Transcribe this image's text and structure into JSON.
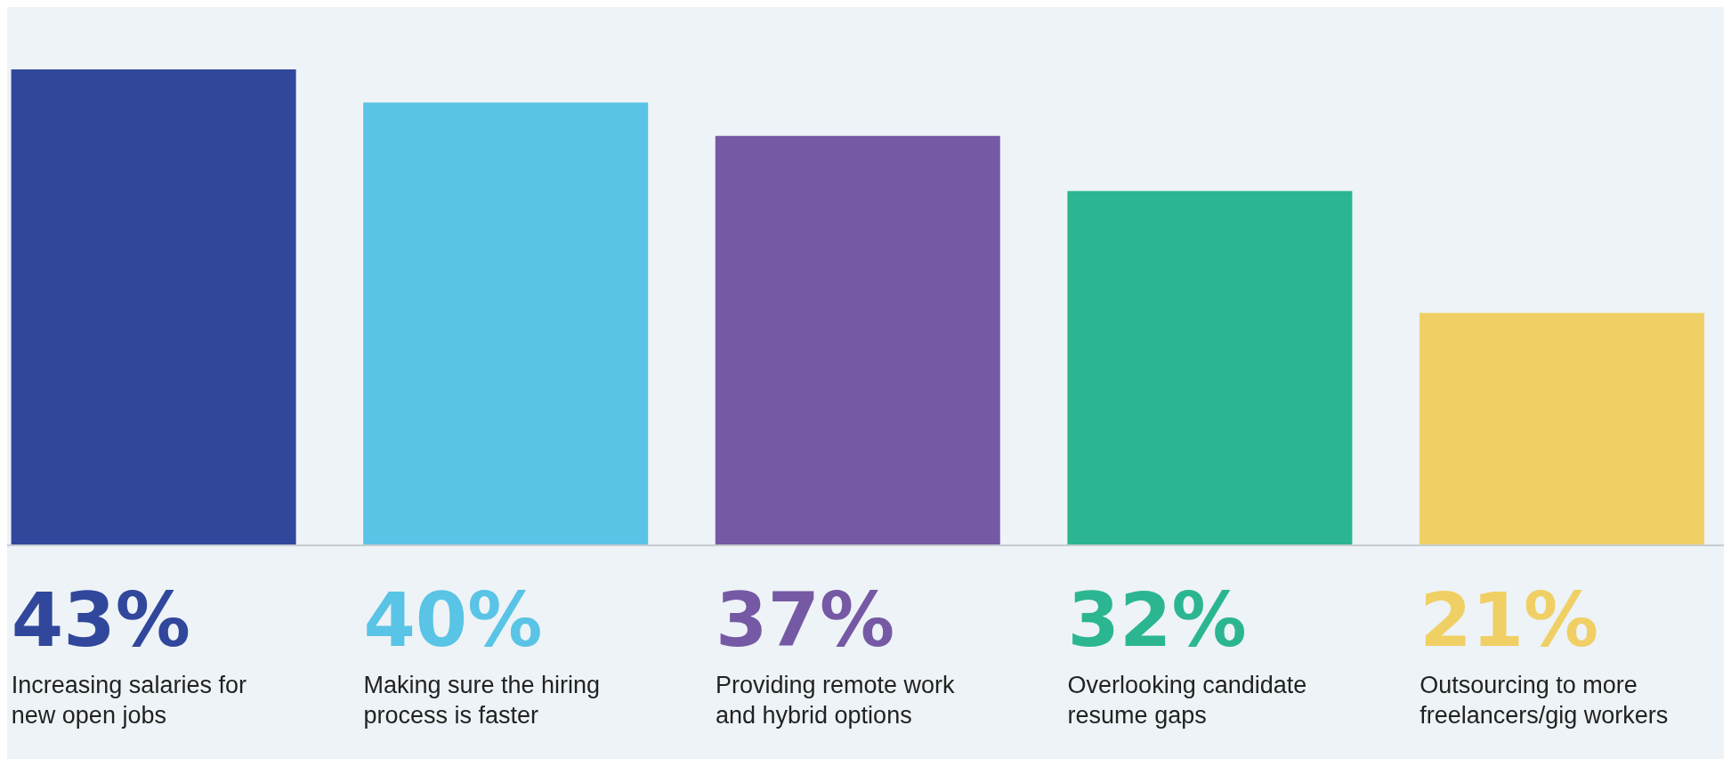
{
  "chart_data": {
    "type": "bar",
    "categories": [
      "Increasing salaries for new open jobs",
      "Making sure the hiring process is faster",
      "Providing remote work and hybrid options",
      "Overlooking candidate resume gaps",
      "Outsourcing to more freelancers/gig workers"
    ],
    "values": [
      43,
      40,
      37,
      32,
      21
    ],
    "colors": [
      "#31479c",
      "#59c4e5",
      "#7659a4",
      "#2bb691",
      "#f0d065"
    ],
    "value_labels": [
      "43%",
      "40%",
      "37%",
      "32%",
      "21%"
    ],
    "grid": false,
    "legend": false
  }
}
